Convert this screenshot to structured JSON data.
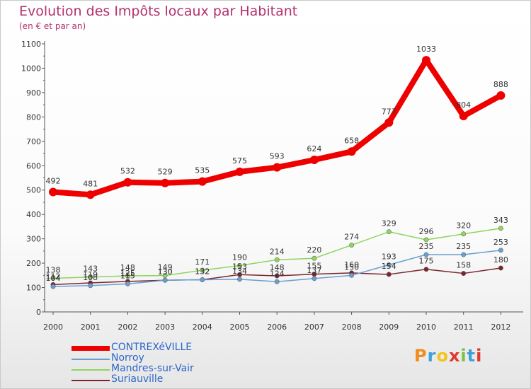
{
  "header": {
    "title": "Evolution des Impôts locaux par Habitant",
    "subtitle": "(en € et par an)"
  },
  "logo": {
    "letters": [
      "P",
      "r",
      "o",
      "x",
      "i",
      "t",
      "i"
    ],
    "colors": [
      "#f28c1e",
      "#3f9fd9",
      "#f2c41e",
      "#e0392b",
      "#7cc242",
      "#3f9fd9",
      "#e0392b"
    ]
  },
  "chart_data": {
    "type": "line",
    "x": [
      "2000",
      "2001",
      "2002",
      "2003",
      "2004",
      "2005",
      "2006",
      "2007",
      "2008",
      "2009",
      "2010",
      "2011",
      "2012"
    ],
    "ylim": [
      0,
      1100
    ],
    "yticks": [
      "0",
      "100",
      "200",
      "300",
      "400",
      "500",
      "600",
      "700",
      "800",
      "900",
      "1000",
      "1100"
    ],
    "grid": false,
    "legend_position": "bottom-left",
    "series": [
      {
        "name": "CONTREXéVILLE",
        "color": "#ee0000",
        "values": [
          492,
          481,
          532,
          529,
          535,
          575,
          593,
          624,
          658,
          777,
          1033,
          804,
          888
        ],
        "labels": [
          "492",
          "481",
          "532",
          "529",
          "535",
          "575",
          "593",
          "624",
          "658",
          "777",
          "1033",
          "804",
          "888"
        ]
      },
      {
        "name": "Norroy",
        "color": "#6a9fd0",
        "values": [
          104,
          108,
          115,
          130,
          132,
          134,
          124,
          137,
          150,
          193,
          235,
          235,
          253
        ],
        "labels": [
          "104",
          "108",
          "115",
          "130",
          "132",
          "134",
          "124",
          "137",
          "150",
          "193",
          "235",
          "235",
          "253"
        ]
      },
      {
        "name": "Mandres-sur-Vair",
        "color": "#8fd45d",
        "values": [
          138,
          143,
          148,
          149,
          171,
          190,
          214,
          220,
          274,
          329,
          296,
          320,
          343
        ],
        "labels": [
          "138",
          "143",
          "148",
          "149",
          "171",
          "190",
          "214",
          "220",
          "274",
          "329",
          "296",
          "320",
          "343"
        ]
      },
      {
        "name": "Suriauville",
        "color": "#7a2630",
        "values": [
          112,
          119,
          125,
          130,
          132,
          153,
          148,
          155,
          160,
          154,
          175,
          158,
          180
        ],
        "labels": [
          "112",
          "119",
          "125",
          "130",
          "132",
          "153",
          "148",
          "155",
          "160",
          "154",
          "175",
          "158",
          "180"
        ]
      }
    ]
  }
}
